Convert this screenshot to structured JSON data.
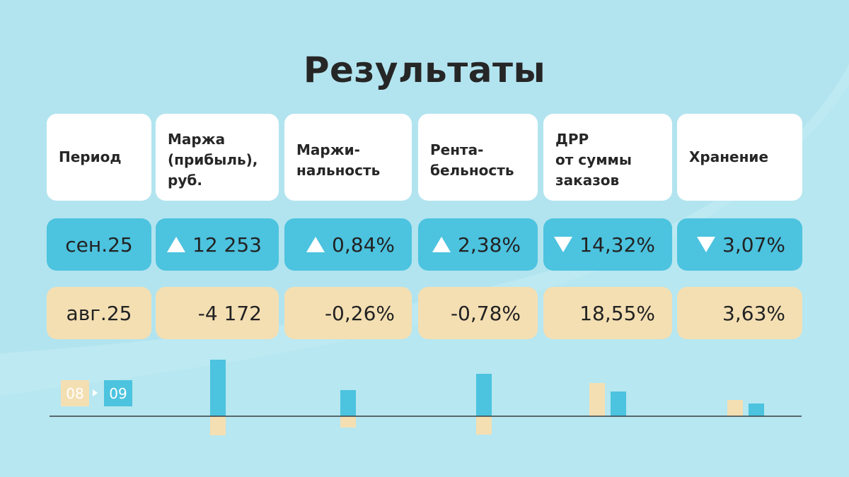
{
  "title": "Результаты",
  "headers": [
    "Период",
    "Маржа\n(прибыль),\nруб.",
    "Маржи-\nнальность",
    "Рента-\nбельность",
    "ДРР\nот суммы\nзаказов",
    "Хранение"
  ],
  "rows": {
    "sep": {
      "period": "сен.25",
      "values": [
        "12 253",
        "0,84%",
        "2,38%",
        "14,32%",
        "3,07%"
      ],
      "trend": [
        "up",
        "up",
        "up",
        "down",
        "down"
      ]
    },
    "aug": {
      "period": "авг.25",
      "values": [
        "-4 172",
        "-0,26%",
        "-0,78%",
        "18,55%",
        "3,63%"
      ]
    }
  },
  "legend": {
    "prev": "08",
    "next": "09"
  },
  "colors": {
    "background": "#b2e4ef",
    "sep": "#4cc3df",
    "aug": "#f4dfb3",
    "text": "#262626",
    "axis": "#3a3f44"
  },
  "chart_data": {
    "type": "bar",
    "categories": [
      "Маржа (прибыль), руб.",
      "Маржинальность",
      "Рентабельность",
      "ДРР от суммы заказов",
      "Хранение"
    ],
    "series": [
      {
        "name": "08",
        "values": [
          -4172,
          -0.26,
          -0.78,
          18.55,
          3.63
        ]
      },
      {
        "name": "09",
        "values": [
          12253,
          0.84,
          2.38,
          14.32,
          3.07
        ]
      }
    ]
  }
}
